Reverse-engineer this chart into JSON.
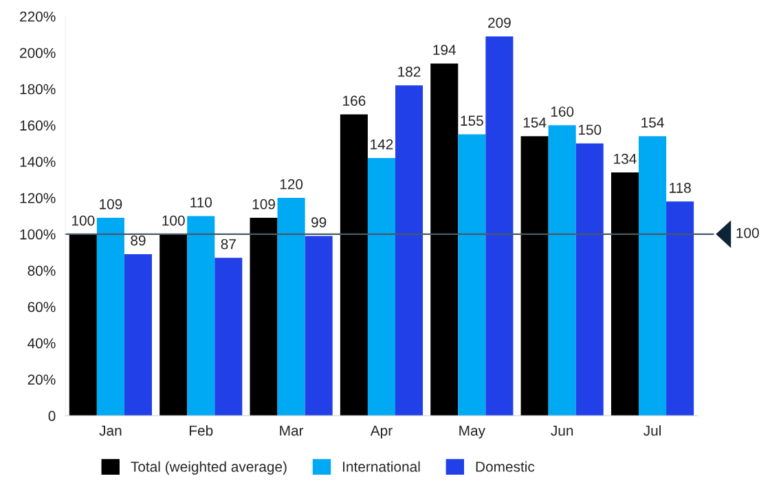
{
  "chart_data": {
    "type": "bar",
    "categories": [
      "Jan",
      "Feb",
      "Mar",
      "Apr",
      "May",
      "Jun",
      "Jul"
    ],
    "series": [
      {
        "name": "Total (weighted average)",
        "color": "#000000",
        "values": [
          100,
          100,
          109,
          166,
          194,
          154,
          134
        ]
      },
      {
        "name": "International",
        "color": "#00a9f4",
        "values": [
          109,
          110,
          120,
          142,
          155,
          160,
          154
        ]
      },
      {
        "name": "Domestic",
        "color": "#2140e8",
        "values": [
          89,
          87,
          99,
          182,
          209,
          150,
          118
        ]
      }
    ],
    "ylim": [
      0,
      220
    ],
    "yticks": [
      0,
      {
        "value": 20,
        "label": "20%"
      },
      {
        "value": 40,
        "label": "40%"
      },
      {
        "value": 60,
        "label": "60%"
      },
      {
        "value": 80,
        "label": "80%"
      },
      {
        "value": 100,
        "label": "100%"
      },
      {
        "value": 120,
        "label": "120%"
      },
      {
        "value": 140,
        "label": "140%"
      },
      {
        "value": 160,
        "label": "160%"
      },
      {
        "value": 180,
        "label": "180%"
      },
      {
        "value": 200,
        "label": "200%"
      },
      {
        "value": 220,
        "label": "220%"
      }
    ],
    "ref_lines": [
      {
        "axis": "y",
        "value": 100,
        "label": "100",
        "color": "#4a5a66"
      }
    ],
    "data_labels": true,
    "grid": false,
    "legend": "bottom"
  }
}
